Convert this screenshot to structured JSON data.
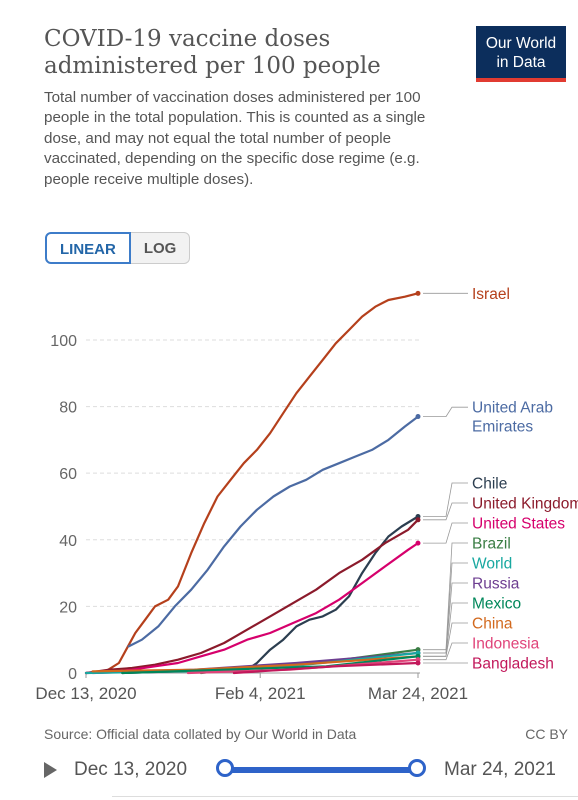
{
  "header": {
    "title": "COVID-19 vaccine doses administered per 100 people",
    "subtitle": "Total number of vaccination doses administered per 100 people in the total population. This is counted as a single dose, and may not equal the total number of people vaccinated, depending on the specific dose regime (e.g. people receive multiple doses).",
    "logo_line1": "Our World",
    "logo_line2": "in Data"
  },
  "scale_toggle": {
    "linear_label": "LINEAR",
    "log_label": "LOG",
    "selected": "linear"
  },
  "footer": {
    "source": "Source: Official data collated by Our World in Data",
    "license": "CC BY"
  },
  "timeline": {
    "start_label": "Dec 13, 2020",
    "end_label": "Mar 24, 2021"
  },
  "chart_data": {
    "type": "line",
    "title": "COVID-19 vaccine doses administered per 100 people",
    "xlabel": "",
    "ylabel": "",
    "x_range": [
      "2020-12-13",
      "2021-03-24"
    ],
    "x_ticks": [
      {
        "date": "2020-12-13",
        "label": "Dec 13, 2020"
      },
      {
        "date": "2021-02-04",
        "label": "Feb 4, 2021"
      },
      {
        "date": "2021-03-24",
        "label": "Mar 24, 2021"
      }
    ],
    "ylim": [
      0,
      115
    ],
    "y_ticks": [
      0,
      20,
      40,
      60,
      80,
      100
    ],
    "grid": "horizontal dashed",
    "legend": "line-end labels at right",
    "series": [
      {
        "name": "Israel",
        "color": "#b5401c",
        "points": [
          [
            "2020-12-13",
            0
          ],
          [
            "2020-12-19",
            0.5
          ],
          [
            "2020-12-23",
            3
          ],
          [
            "2020-12-28",
            12
          ],
          [
            "2020-12-31",
            16
          ],
          [
            "2021-01-03",
            20
          ],
          [
            "2021-01-07",
            22
          ],
          [
            "2021-01-10",
            26
          ],
          [
            "2021-01-14",
            36
          ],
          [
            "2021-01-18",
            45
          ],
          [
            "2021-01-22",
            53
          ],
          [
            "2021-01-26",
            58
          ],
          [
            "2021-01-30",
            63
          ],
          [
            "2021-02-03",
            67
          ],
          [
            "2021-02-07",
            72
          ],
          [
            "2021-02-11",
            78
          ],
          [
            "2021-02-15",
            84
          ],
          [
            "2021-02-19",
            89
          ],
          [
            "2021-02-23",
            94
          ],
          [
            "2021-02-27",
            99
          ],
          [
            "2021-03-03",
            103
          ],
          [
            "2021-03-07",
            107
          ],
          [
            "2021-03-11",
            110
          ],
          [
            "2021-03-15",
            112
          ],
          [
            "2021-03-20",
            113
          ],
          [
            "2021-03-24",
            114
          ]
        ]
      },
      {
        "name": "United Arab Emirates",
        "color": "#4c6ba3",
        "points": [
          [
            "2020-12-26",
            8
          ],
          [
            "2020-12-30",
            10
          ],
          [
            "2021-01-04",
            14
          ],
          [
            "2021-01-09",
            20
          ],
          [
            "2021-01-14",
            25
          ],
          [
            "2021-01-19",
            31
          ],
          [
            "2021-01-24",
            38
          ],
          [
            "2021-01-29",
            44
          ],
          [
            "2021-02-03",
            49
          ],
          [
            "2021-02-08",
            53
          ],
          [
            "2021-02-13",
            56
          ],
          [
            "2021-02-18",
            58
          ],
          [
            "2021-02-23",
            61
          ],
          [
            "2021-02-28",
            63
          ],
          [
            "2021-03-05",
            65
          ],
          [
            "2021-03-10",
            67
          ],
          [
            "2021-03-15",
            70
          ],
          [
            "2021-03-20",
            74
          ],
          [
            "2021-03-24",
            77
          ]
        ]
      },
      {
        "name": "Chile",
        "color": "#2c3e50",
        "points": [
          [
            "2020-12-24",
            0
          ],
          [
            "2021-01-10",
            0.5
          ],
          [
            "2021-01-31",
            1
          ],
          [
            "2021-02-03",
            3
          ],
          [
            "2021-02-07",
            7
          ],
          [
            "2021-02-11",
            10
          ],
          [
            "2021-02-15",
            14
          ],
          [
            "2021-02-19",
            16
          ],
          [
            "2021-02-23",
            17
          ],
          [
            "2021-02-27",
            19
          ],
          [
            "2021-03-03",
            23
          ],
          [
            "2021-03-07",
            30
          ],
          [
            "2021-03-11",
            36
          ],
          [
            "2021-03-15",
            41
          ],
          [
            "2021-03-19",
            44
          ],
          [
            "2021-03-24",
            47
          ]
        ]
      },
      {
        "name": "United Kingdom",
        "color": "#8b1a2b",
        "points": [
          [
            "2020-12-13",
            0
          ],
          [
            "2020-12-20",
            1
          ],
          [
            "2020-12-27",
            1.5
          ],
          [
            "2021-01-03",
            2.5
          ],
          [
            "2021-01-10",
            4
          ],
          [
            "2021-01-17",
            6
          ],
          [
            "2021-01-24",
            9
          ],
          [
            "2021-01-31",
            13
          ],
          [
            "2021-02-07",
            17
          ],
          [
            "2021-02-14",
            21
          ],
          [
            "2021-02-21",
            25
          ],
          [
            "2021-02-28",
            30
          ],
          [
            "2021-03-07",
            34
          ],
          [
            "2021-03-14",
            39
          ],
          [
            "2021-03-21",
            43
          ],
          [
            "2021-03-24",
            46
          ]
        ]
      },
      {
        "name": "United States",
        "color": "#d6006c",
        "points": [
          [
            "2020-12-13",
            0
          ],
          [
            "2020-12-20",
            0.2
          ],
          [
            "2020-12-27",
            1
          ],
          [
            "2021-01-03",
            2
          ],
          [
            "2021-01-10",
            3
          ],
          [
            "2021-01-17",
            5
          ],
          [
            "2021-01-24",
            7
          ],
          [
            "2021-01-31",
            10
          ],
          [
            "2021-02-07",
            12
          ],
          [
            "2021-02-14",
            15
          ],
          [
            "2021-02-21",
            18
          ],
          [
            "2021-02-28",
            22
          ],
          [
            "2021-03-07",
            27
          ],
          [
            "2021-03-14",
            32
          ],
          [
            "2021-03-21",
            37
          ],
          [
            "2021-03-24",
            39
          ]
        ]
      },
      {
        "name": "Brazil",
        "color": "#3a7d44",
        "points": [
          [
            "2021-01-17",
            0
          ],
          [
            "2021-02-04",
            2
          ],
          [
            "2021-03-01",
            4
          ],
          [
            "2021-03-24",
            7
          ]
        ]
      },
      {
        "name": "Russia",
        "color": "#6d3e91",
        "points": [
          [
            "2020-12-15",
            0
          ],
          [
            "2021-01-15",
            1
          ],
          [
            "2021-02-15",
            3
          ],
          [
            "2021-03-24",
            6
          ]
        ]
      },
      {
        "name": "World",
        "color": "#18a8a0",
        "points": [
          [
            "2020-12-13",
            0
          ],
          [
            "2021-01-13",
            0.5
          ],
          [
            "2021-02-13",
            2
          ],
          [
            "2021-03-24",
            6
          ]
        ]
      },
      {
        "name": "China",
        "color": "#d2691e",
        "points": [
          [
            "2020-12-15",
            0.5
          ],
          [
            "2021-01-15",
            1
          ],
          [
            "2021-02-15",
            2.5
          ],
          [
            "2021-03-24",
            5
          ]
        ]
      },
      {
        "name": "Mexico",
        "color": "#00875a",
        "points": [
          [
            "2020-12-24",
            0
          ],
          [
            "2021-01-24",
            1
          ],
          [
            "2021-02-24",
            2
          ],
          [
            "2021-03-24",
            5
          ]
        ]
      },
      {
        "name": "Indonesia",
        "color": "#e0447a",
        "points": [
          [
            "2021-01-13",
            0
          ],
          [
            "2021-02-13",
            1
          ],
          [
            "2021-03-24",
            4
          ]
        ]
      },
      {
        "name": "Bangladesh",
        "color": "#c2185b",
        "points": [
          [
            "2021-01-27",
            0
          ],
          [
            "2021-02-27",
            2
          ],
          [
            "2021-03-24",
            3
          ]
        ]
      }
    ]
  }
}
